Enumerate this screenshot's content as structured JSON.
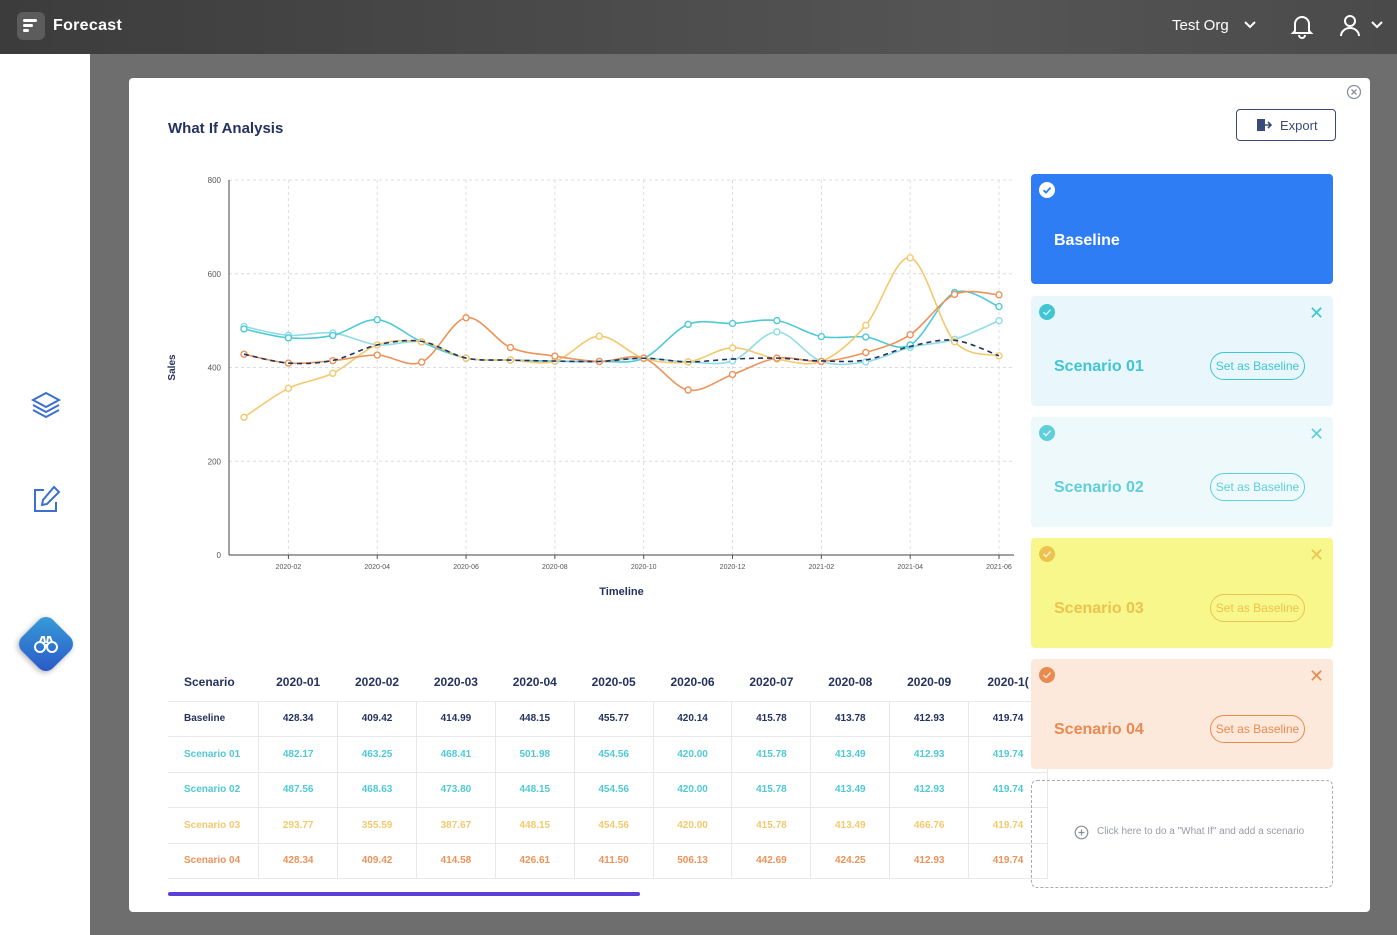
{
  "app": {
    "title": "Forecast",
    "org": "Test Org"
  },
  "modal": {
    "title": "What If Analysis",
    "export_label": "Export"
  },
  "chart_data": {
    "type": "line",
    "xlabel": "Timeline",
    "ylabel": "Sales",
    "ylim": [
      0,
      800
    ],
    "yticks": [
      0,
      200,
      400,
      600,
      800
    ],
    "x": [
      "2020-01",
      "2020-02",
      "2020-03",
      "2020-04",
      "2020-05",
      "2020-06",
      "2020-07",
      "2020-08",
      "2020-09",
      "2020-10",
      "2020-11",
      "2020-12",
      "2021-01",
      "2021-02",
      "2021-03",
      "2021-04",
      "2021-05",
      "2021-06"
    ],
    "xticks": [
      "2020-02",
      "2020-04",
      "2020-06",
      "2020-08",
      "2020-10",
      "2020-12",
      "2021-02",
      "2021-04",
      "2021-06"
    ],
    "grid": true,
    "series": [
      {
        "name": "Baseline",
        "color": "#253260",
        "dashed": true,
        "values": [
          428.34,
          409.42,
          414.99,
          448.15,
          455.77,
          420.14,
          415.78,
          413.78,
          412.93,
          419.74,
          412,
          418,
          420,
          414,
          416,
          445,
          458,
          425
        ]
      },
      {
        "name": "Scenario 01",
        "color": "#4fc9d6",
        "values": [
          482.17,
          463.25,
          468.41,
          501.98,
          454.56,
          420.0,
          415.78,
          413.49,
          412.93,
          419.74,
          492,
          494,
          500,
          466,
          465,
          448,
          560,
          530
        ]
      },
      {
        "name": "Scenario 02",
        "color": "#8fdde6",
        "values": [
          487.56,
          468.63,
          473.8,
          448.15,
          454.56,
          420.0,
          415.78,
          413.49,
          412.93,
          419.74,
          412,
          414,
          476,
          413,
          412,
          443,
          460,
          500
        ]
      },
      {
        "name": "Scenario 03",
        "color": "#f3c96d",
        "values": [
          293.77,
          355.59,
          387.67,
          448.15,
          454.56,
          420.0,
          415.78,
          413.49,
          466.76,
          419.74,
          412,
          442,
          418,
          413,
          490,
          634,
          455,
          425
        ]
      },
      {
        "name": "Scenario 04",
        "color": "#ec935a",
        "values": [
          428.34,
          409.42,
          414.58,
          426.61,
          411.5,
          506.13,
          442.69,
          424.25,
          412.93,
          419.74,
          352,
          385,
          420,
          413,
          432,
          470,
          556,
          555
        ]
      }
    ]
  },
  "table": {
    "headers": [
      "Scenario",
      "2020-01",
      "2020-02",
      "2020-03",
      "2020-04",
      "2020-05",
      "2020-06",
      "2020-07",
      "2020-08",
      "2020-09",
      "2020-1("
    ],
    "rows": [
      [
        "Baseline",
        "428.34",
        "409.42",
        "414.99",
        "448.15",
        "455.77",
        "420.14",
        "415.78",
        "413.78",
        "412.93",
        "419.74"
      ],
      [
        "Scenario 01",
        "482.17",
        "463.25",
        "468.41",
        "501.98",
        "454.56",
        "420.00",
        "415.78",
        "413.49",
        "412.93",
        "419.74"
      ],
      [
        "Scenario 02",
        "487.56",
        "468.63",
        "473.80",
        "448.15",
        "454.56",
        "420.00",
        "415.78",
        "413.49",
        "412.93",
        "419.74"
      ],
      [
        "Scenario 03",
        "293.77",
        "355.59",
        "387.67",
        "448.15",
        "454.56",
        "420.00",
        "415.78",
        "413.49",
        "466.76",
        "419.74"
      ],
      [
        "Scenario 04",
        "428.34",
        "409.42",
        "414.58",
        "426.61",
        "411.50",
        "506.13",
        "442.69",
        "424.25",
        "412.93",
        "419.74"
      ]
    ]
  },
  "scenarios": [
    {
      "name": "Baseline",
      "bg": "#2f7df5",
      "fg": "#ffffff",
      "dot": "#ffffff",
      "check": true
    },
    {
      "name": "Scenario 01",
      "bg": "#e9f7fc",
      "fg": "#3fc5d3",
      "dot": "#3fc5d3",
      "set_label": "Set as Baseline"
    },
    {
      "name": "Scenario 02",
      "bg": "#eef9fc",
      "fg": "#5fcfdc",
      "dot": "#5fcfdc",
      "set_label": "Set as Baseline"
    },
    {
      "name": "Scenario 03",
      "bg": "#f7f78c",
      "fg": "#eec24e",
      "dot": "#eec24e",
      "set_label": "Set as Baseline"
    },
    {
      "name": "Scenario 04",
      "bg": "#fde9dc",
      "fg": "#e98a4e",
      "dot": "#e98a4e",
      "set_label": "Set as Baseline"
    }
  ],
  "add_scenario": {
    "text": "Click here to do a \"What If\" and add a scenario"
  },
  "icons": {
    "menu": "menu-icon",
    "bell": "bell-icon",
    "user": "user-icon",
    "layers": "layers-icon",
    "edit": "edit-icon",
    "binoculars": "binoculars-icon",
    "close": "close-circle-icon",
    "export": "export-icon",
    "add": "add-circle-icon"
  }
}
